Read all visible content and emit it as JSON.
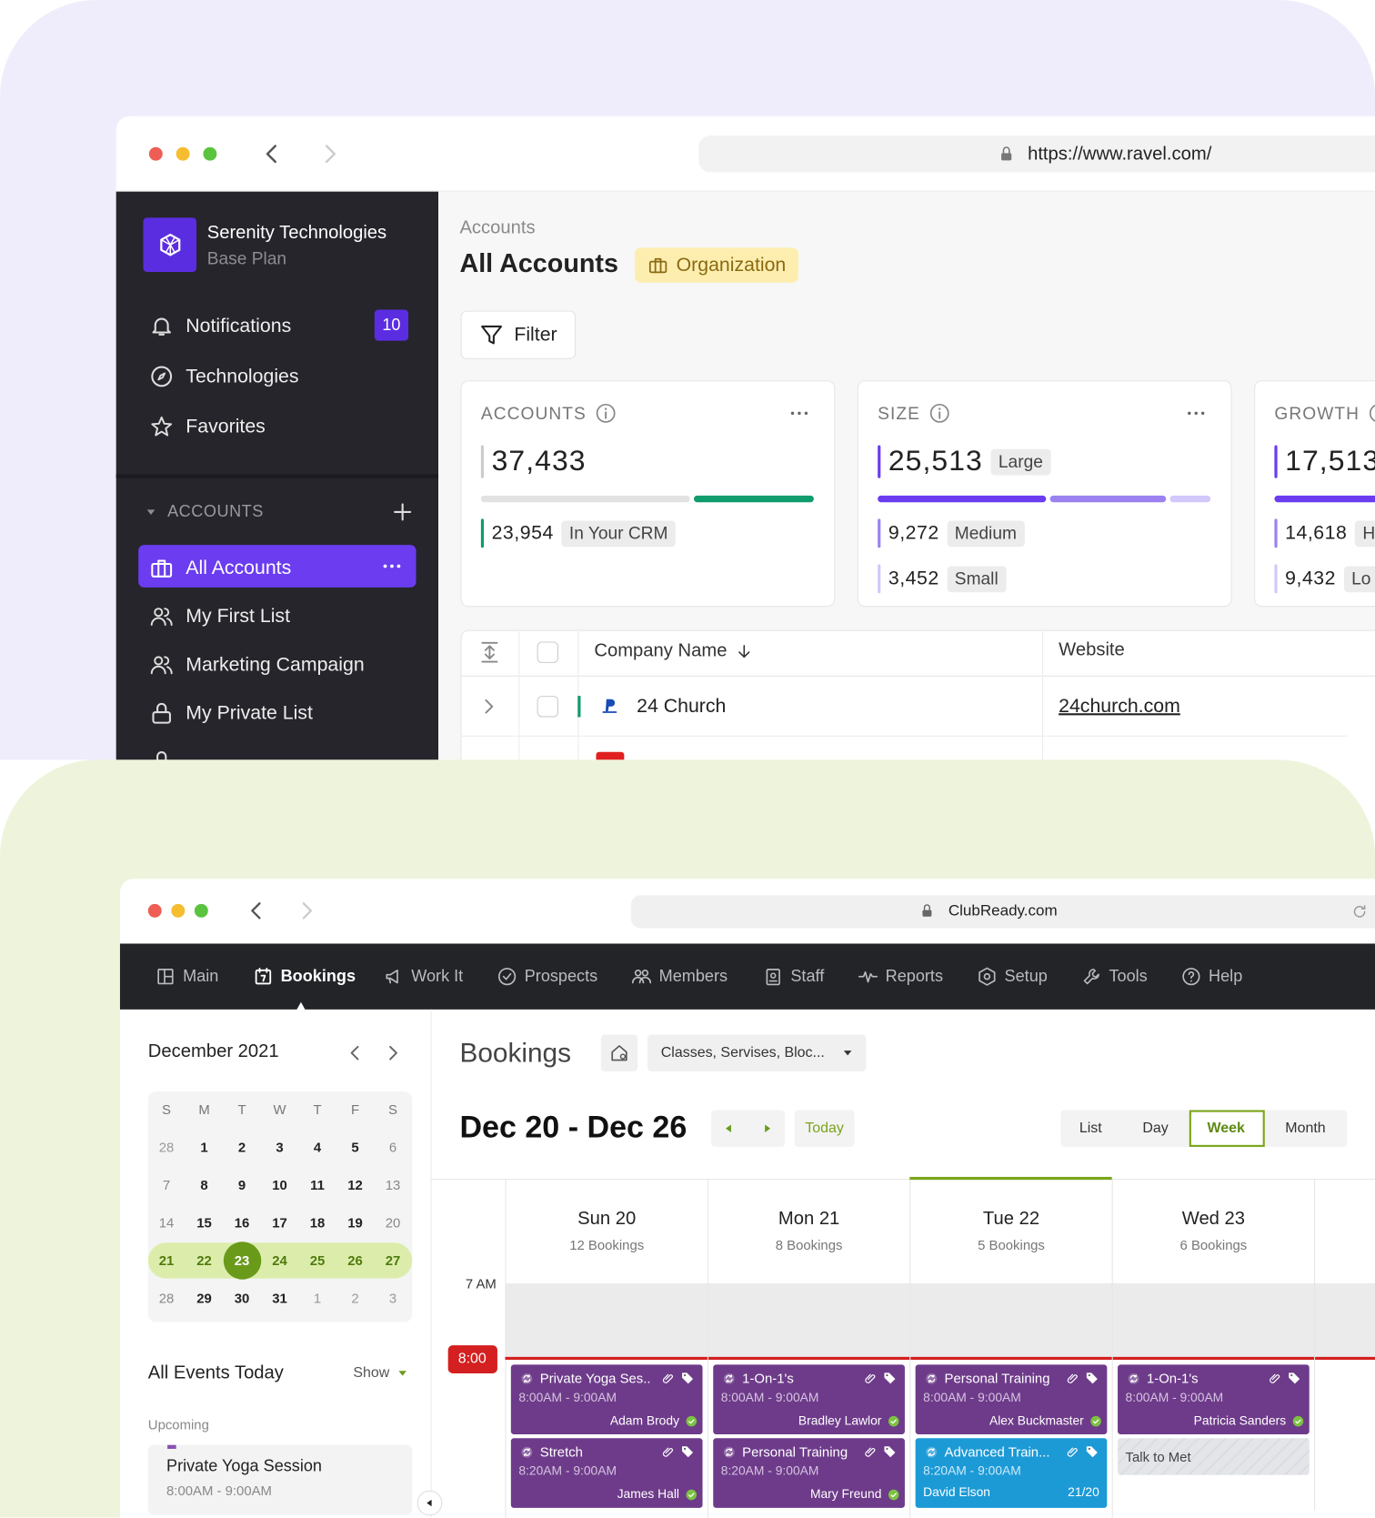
{
  "ravel": {
    "url": "https://www.ravel.com/",
    "org": {
      "name": "Serenity Technologies",
      "plan": "Base Plan"
    },
    "nav": [
      {
        "label": "Notifications",
        "badge": 10
      },
      {
        "label": "Technologies"
      },
      {
        "label": "Favorites"
      }
    ],
    "section": "ACCOUNTS",
    "lists": [
      "All Accounts",
      "My First List",
      "Marketing Campaign",
      "My Private List"
    ],
    "breadcrumb": "Accounts",
    "title": "All Accounts",
    "tag": "Organization",
    "filter": "Filter",
    "cards": [
      {
        "label": "ACCOUNTS",
        "value": "37,433",
        "rows": [
          {
            "value": "23,954",
            "tag": "In Your CRM"
          }
        ]
      },
      {
        "label": "SIZE",
        "value": "25,513",
        "tag": "Large",
        "rows": [
          {
            "value": "9,272",
            "tag": "Medium"
          },
          {
            "value": "3,452",
            "tag": "Small"
          }
        ]
      },
      {
        "label": "GROWTH",
        "value": "17,513",
        "rows": [
          {
            "value": "14,618",
            "tag": "H"
          },
          {
            "value": "9,432",
            "tag": "Lo"
          }
        ]
      }
    ],
    "table": {
      "columns": [
        "Company Name",
        "Website"
      ],
      "rows": [
        [
          "24 Church",
          "24church.com"
        ]
      ]
    }
  },
  "clubready": {
    "url": "ClubReady.com",
    "menu": [
      "Main",
      "Bookings",
      "Work It",
      "Prospects",
      "Members",
      "Staff",
      "Reports",
      "Setup",
      "Tools",
      "Help"
    ],
    "calendar": {
      "month": "December 2021",
      "weekdays": [
        "S",
        "M",
        "T",
        "W",
        "T",
        "F",
        "S"
      ],
      "weeks": [
        [
          28,
          1,
          2,
          3,
          4,
          5,
          6
        ],
        [
          7,
          8,
          9,
          10,
          11,
          12,
          13
        ],
        [
          14,
          15,
          16,
          17,
          18,
          19,
          20
        ],
        [
          21,
          22,
          23,
          24,
          25,
          26,
          27
        ],
        [
          28,
          29,
          30,
          31,
          1,
          2,
          3
        ]
      ]
    },
    "events_title": "All Events Today",
    "show": "Show",
    "upcoming": "Upcoming",
    "event": {
      "name": "Private Yoga Session",
      "time": "8:00AM - 9:00AM"
    },
    "title": "Bookings",
    "filter": "Classes, Servises, Bloc...",
    "range": "Dec 20 - Dec 26",
    "today": "Today",
    "views": [
      "List",
      "Day",
      "Week",
      "Month"
    ],
    "time_label": "7 AM",
    "now": "8:00",
    "days": [
      {
        "name": "Sun 20",
        "count": "12 Bookings",
        "bookings": [
          {
            "title": "Private Yoga Ses..",
            "time": "8:00AM - 9:00AM",
            "person": "Adam Brody"
          },
          {
            "title": "Stretch",
            "time": "8:20AM - 9:00AM",
            "person": "James Hall"
          }
        ]
      },
      {
        "name": "Mon 21",
        "count": "8 Bookings",
        "bookings": [
          {
            "title": "1-On-1's",
            "time": "8:00AM - 9:00AM",
            "person": "Bradley Lawlor"
          },
          {
            "title": "Personal Training",
            "time": "8:20AM - 9:00AM",
            "person": "Mary Freund"
          }
        ]
      },
      {
        "name": "Tue 22",
        "count": "5 Bookings",
        "bookings": [
          {
            "title": "Personal Training",
            "time": "8:00AM - 9:00AM",
            "person": "Alex Buckmaster"
          },
          {
            "title": "Advanced Train...",
            "time": "8:20AM - 9:00AM",
            "person": "David Elson",
            "capacity": "21/20"
          }
        ]
      },
      {
        "name": "Wed 23",
        "count": "6 Bookings",
        "bookings": [
          {
            "title": "1-On-1's",
            "time": "8:00AM - 9:00AM",
            "person": "Patricia Sanders"
          },
          {
            "title": "Talk to Met"
          }
        ]
      }
    ]
  }
}
